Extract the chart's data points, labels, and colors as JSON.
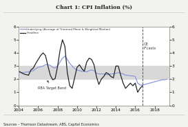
{
  "title": "Chart 1: CPI Inflation (%)",
  "source_text": "Sources – Thomson Datastream, ABS, Capital Economics",
  "rba_band_low": 2.0,
  "rba_band_high": 3.0,
  "rba_band_color": "#d8d8d8",
  "forecast_start": 2016.75,
  "forecast_label": "CE\nF'casts",
  "xlim": [
    2004,
    2019.5
  ],
  "ylim": [
    0,
    6
  ],
  "yticks": [
    0,
    1,
    2,
    3,
    4,
    5,
    6
  ],
  "xticks": [
    2004,
    2006,
    2008,
    2010,
    2012,
    2014,
    2016,
    2018
  ],
  "underlying_color": "#8899dd",
  "headline_color": "#222222",
  "underlying_x": [
    2004.0,
    2004.25,
    2004.5,
    2004.75,
    2005.0,
    2005.25,
    2005.5,
    2005.75,
    2006.0,
    2006.25,
    2006.5,
    2006.75,
    2007.0,
    2007.25,
    2007.5,
    2007.75,
    2008.0,
    2008.25,
    2008.5,
    2008.75,
    2009.0,
    2009.25,
    2009.5,
    2009.75,
    2010.0,
    2010.25,
    2010.5,
    2010.75,
    2011.0,
    2011.25,
    2011.5,
    2011.75,
    2012.0,
    2012.25,
    2012.5,
    2012.75,
    2013.0,
    2013.25,
    2013.5,
    2013.75,
    2014.0,
    2014.25,
    2014.5,
    2014.75,
    2015.0,
    2015.25,
    2015.5,
    2015.75,
    2016.0,
    2016.25,
    2016.5,
    2016.75,
    2017.0,
    2017.25,
    2017.5,
    2017.75,
    2018.0,
    2018.25,
    2018.5,
    2018.75,
    2019.0,
    2019.25
  ],
  "underlying_y": [
    2.55,
    2.5,
    2.5,
    2.55,
    2.55,
    2.6,
    2.65,
    2.8,
    2.9,
    2.95,
    3.0,
    3.1,
    3.1,
    3.05,
    2.9,
    2.85,
    3.0,
    3.3,
    3.6,
    3.75,
    3.5,
    3.2,
    3.0,
    2.8,
    2.7,
    2.65,
    2.6,
    2.6,
    2.55,
    2.65,
    2.7,
    2.65,
    2.45,
    2.4,
    2.4,
    2.4,
    2.35,
    2.35,
    2.4,
    2.4,
    2.45,
    2.5,
    2.45,
    2.4,
    2.3,
    2.3,
    2.25,
    2.25,
    2.2,
    1.7,
    1.55,
    1.55,
    1.6,
    1.65,
    1.7,
    1.75,
    1.8,
    1.85,
    1.9,
    1.95,
    1.95,
    2.0
  ],
  "headline_x": [
    2004.0,
    2004.25,
    2004.5,
    2004.75,
    2005.0,
    2005.25,
    2005.5,
    2005.75,
    2006.0,
    2006.25,
    2006.5,
    2006.75,
    2007.0,
    2007.25,
    2007.5,
    2007.75,
    2008.0,
    2008.25,
    2008.5,
    2008.75,
    2009.0,
    2009.25,
    2009.5,
    2009.75,
    2010.0,
    2010.25,
    2010.5,
    2010.75,
    2011.0,
    2011.25,
    2011.5,
    2011.75,
    2012.0,
    2012.25,
    2012.5,
    2012.75,
    2013.0,
    2013.25,
    2013.5,
    2013.75,
    2014.0,
    2014.25,
    2014.5,
    2014.75,
    2015.0,
    2015.25,
    2015.5,
    2015.75,
    2016.0,
    2016.25,
    2016.5,
    2016.75
  ],
  "headline_y": [
    2.6,
    2.5,
    2.4,
    2.35,
    2.3,
    2.7,
    2.85,
    3.2,
    3.5,
    3.8,
    4.0,
    3.8,
    3.0,
    2.3,
    1.95,
    2.05,
    3.0,
    4.2,
    5.0,
    4.5,
    2.5,
    1.5,
    1.3,
    2.1,
    2.9,
    3.1,
    2.8,
    2.6,
    3.3,
    3.6,
    3.5,
    3.1,
    2.2,
    1.6,
    2.0,
    2.2,
    2.5,
    2.4,
    2.2,
    2.1,
    3.0,
    3.0,
    2.3,
    1.7,
    1.3,
    1.5,
    1.7,
    1.5,
    1.7,
    1.0,
    1.3,
    1.5
  ],
  "bg_color": "#f2f2ee",
  "plot_bg": "#ffffff",
  "border_color": "#999999"
}
